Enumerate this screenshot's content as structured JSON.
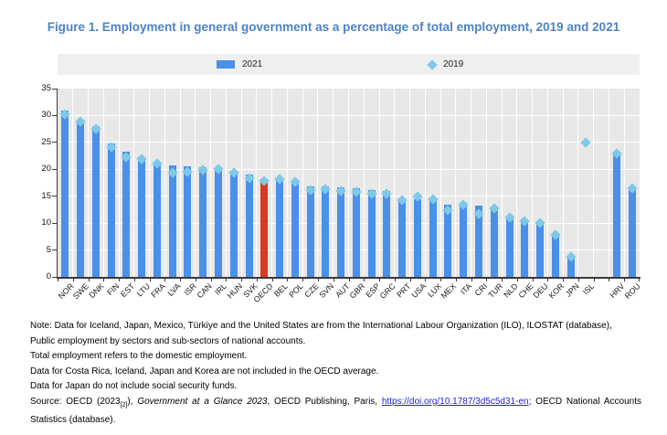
{
  "page": {
    "title": "Figure 1. Employment in general government as a percentage of total employment, 2019 and 2021"
  },
  "legend": {
    "bar_label": "2021",
    "diamond_label": "2019"
  },
  "colors": {
    "title": "#4d82c4",
    "bar": "#4a90e9",
    "bar_highlight": "#d93a20",
    "diamond": "#7ec8e8",
    "plot_bg": "#e8e8e8",
    "legend_bg": "#efefef",
    "axis": "#3a3a3a",
    "link": "#2222cc"
  },
  "chart_data": {
    "type": "bar",
    "title": "Employment in general government as a percentage of total employment, 2019 and 2021",
    "xlabel": "",
    "ylabel": "",
    "ylim": [
      0,
      35
    ],
    "yticks": [
      0,
      5,
      10,
      15,
      20,
      25,
      30,
      35
    ],
    "grid": true,
    "legend_position": "top",
    "highlight_category": "OECD",
    "categories": [
      "NOR",
      "SWE",
      "DNK",
      "FIN",
      "EST",
      "LTU",
      "FRA",
      "LVA",
      "ISR",
      "CAN",
      "IRL",
      "HUN",
      "SVK",
      "OECD",
      "BEL",
      "POL",
      "CZE",
      "SVN",
      "AUT",
      "GBR",
      "ESP",
      "GRC",
      "PRT",
      "USA",
      "LUX",
      "MEX",
      "ITA",
      "CRI",
      "TUR",
      "NLD",
      "CHE",
      "DEU",
      "KOR",
      "JPN",
      "ISL",
      "",
      "HRV",
      "ROU"
    ],
    "series": [
      {
        "name": "2021",
        "type": "bar",
        "values": [
          30.9,
          29.2,
          28.0,
          24.8,
          23.2,
          22.1,
          21.0,
          20.8,
          20.5,
          20.4,
          20.1,
          19.4,
          19.0,
          18.2,
          17.8,
          17.3,
          16.9,
          16.8,
          16.7,
          16.5,
          16.2,
          16.0,
          14.6,
          14.5,
          14.1,
          13.4,
          13.3,
          13.2,
          13.1,
          11.2,
          10.5,
          10.4,
          8.1,
          4.1,
          null,
          null,
          22.7,
          16.4
        ]
      },
      {
        "name": "2019",
        "type": "diamond",
        "values": [
          30.2,
          28.9,
          27.5,
          24.1,
          22.2,
          21.9,
          21.1,
          19.3,
          19.5,
          19.8,
          20.0,
          19.3,
          18.3,
          17.8,
          18.1,
          17.6,
          16.1,
          16.3,
          16.0,
          15.8,
          15.5,
          15.4,
          14.3,
          14.9,
          14.4,
          12.4,
          13.5,
          11.7,
          12.7,
          11.1,
          10.3,
          10.1,
          7.9,
          3.8,
          25.0,
          null,
          23.0,
          16.5
        ]
      }
    ]
  },
  "notes": {
    "line1": "Note: Data for Iceland, Japan, Mexico, Türkiye and the United States are from the International Labour Organization (ILO), ILOSTAT (database),",
    "line2": "Public employment by sectors and sub-sectors of national accounts.",
    "line3": "Total employment refers to the domestic employment.",
    "line4": "Data for Costa Rica, Iceland, Japan and Korea are not included in the OECD average.",
    "line5": "Data for Japan do not include social security funds."
  },
  "source": {
    "prefix": "Source: OECD (2023",
    "ref_sub": "[2]",
    "after_ref": "), ",
    "italic_title": "Government at a Glance 2023",
    "middle": ", OECD Publishing, Paris, ",
    "link": "https://doi.org/10.1787/3d5c5d31-en",
    "suffix": "; OECD National Accounts Statistics (database)."
  }
}
